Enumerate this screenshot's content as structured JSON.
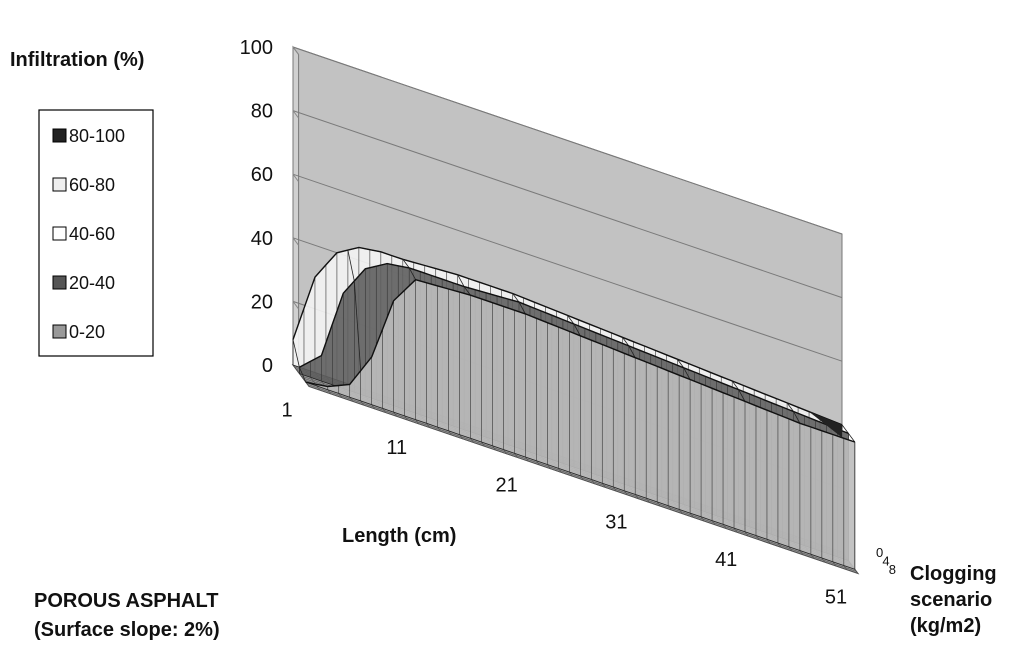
{
  "chart_data": {
    "type": "surface",
    "title": "",
    "zlabel": "Infiltration (%)",
    "xlabel": "Length (cm)",
    "ylabel_lines": [
      "Clogging",
      "scenario",
      "(kg/m2)"
    ],
    "caption_lines": [
      "POROUS ASPHALT",
      "(Surface slope: 2%)"
    ],
    "z_ticks": [
      "0",
      "20",
      "40",
      "60",
      "80",
      "100"
    ],
    "z_range": [
      0,
      100
    ],
    "x_ticks": [
      "1",
      "11",
      "21",
      "31",
      "41",
      "51"
    ],
    "x_range": [
      1,
      51
    ],
    "y_ticks": [
      "0",
      "4",
      "8"
    ],
    "y_range": [
      0,
      10
    ],
    "legend": [
      {
        "label": "80-100",
        "color": "#222222"
      },
      {
        "label": "60-80",
        "color": "#eeeeee"
      },
      {
        "label": "40-60",
        "color": "#ffffff"
      },
      {
        "label": "20-40",
        "color": "#555555"
      },
      {
        "label": "0-20",
        "color": "#999999"
      }
    ],
    "series": [
      {
        "y": 0,
        "length": [
          1,
          3,
          5,
          7,
          9,
          11,
          16,
          21,
          26,
          31,
          36,
          41,
          46,
          51
        ],
        "infiltration": [
          8,
          30,
          40,
          44,
          45,
          45,
          46,
          46,
          45,
          44,
          43,
          42,
          41,
          40
        ]
      },
      {
        "y": 4,
        "length": [
          1,
          3,
          5,
          7,
          9,
          11,
          16,
          21,
          26,
          31,
          36,
          41,
          46,
          51
        ],
        "infiltration": [
          2,
          8,
          30,
          40,
          44,
          45,
          45,
          46,
          45,
          44,
          43,
          42,
          41,
          40
        ]
      },
      {
        "y": 8,
        "length": [
          1,
          3,
          5,
          7,
          9,
          11,
          16,
          21,
          26,
          31,
          36,
          41,
          46,
          51
        ],
        "infiltration": [
          0,
          1,
          4,
          15,
          35,
          44,
          45,
          45,
          44,
          43,
          42,
          41,
          40,
          40
        ]
      }
    ]
  }
}
